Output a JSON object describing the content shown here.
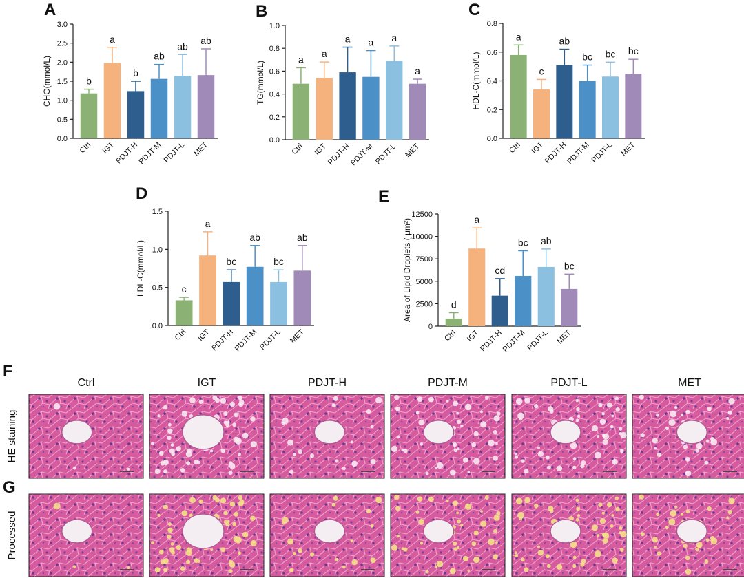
{
  "chart_data": [
    {
      "panel": "A",
      "type": "bar",
      "ylabel": "CHO(mmol/L)",
      "ylim": [
        0,
        3.0
      ],
      "yticks": [
        "0.0",
        "0.5",
        "1.0",
        "1.5",
        "2.0",
        "2.5",
        "3.0"
      ],
      "categories": [
        "Ctrl",
        "IGT",
        "PDJT-H",
        "PDJT-M",
        "PDJT-L",
        "MET"
      ],
      "values": [
        1.18,
        1.98,
        1.24,
        1.56,
        1.64,
        1.66
      ],
      "errors": [
        0.11,
        0.41,
        0.26,
        0.38,
        0.56,
        0.69
      ],
      "labels": [
        "b",
        "a",
        "b",
        "ab",
        "ab",
        "ab"
      ]
    },
    {
      "panel": "B",
      "type": "bar",
      "ylabel": "TG(mmol/L)",
      "ylim": [
        0,
        1.0
      ],
      "yticks": [
        "0.0",
        "0.2",
        "0.4",
        "0.6",
        "0.8",
        "1.0"
      ],
      "categories": [
        "Ctrl",
        "IGT",
        "PDJT-H",
        "PDJT-M",
        "PDJT-L",
        "MET"
      ],
      "values": [
        0.49,
        0.54,
        0.59,
        0.55,
        0.69,
        0.49
      ],
      "errors": [
        0.14,
        0.14,
        0.22,
        0.23,
        0.13,
        0.04
      ],
      "labels": [
        "a",
        "a",
        "a",
        "a",
        "a",
        "a"
      ]
    },
    {
      "panel": "C",
      "type": "bar",
      "ylabel": "HDL-C(mmol/L)",
      "ylim": [
        0,
        0.8
      ],
      "yticks": [
        "0.0",
        "0.2",
        "0.4",
        "0.6",
        "0.8"
      ],
      "categories": [
        "Ctrl",
        "IGT",
        "PDJT-H",
        "PDJT-M",
        "PDJT-L",
        "MET"
      ],
      "values": [
        0.58,
        0.34,
        0.51,
        0.4,
        0.43,
        0.45
      ],
      "errors": [
        0.07,
        0.07,
        0.11,
        0.11,
        0.1,
        0.1
      ],
      "labels": [
        "a",
        "c",
        "ab",
        "bc",
        "bc",
        "bc"
      ]
    },
    {
      "panel": "D",
      "type": "bar",
      "ylabel": "LDL-C(mmol/L)",
      "ylim": [
        0,
        1.5
      ],
      "yticks": [
        "0.0",
        "0.5",
        "1.0",
        "1.5"
      ],
      "categories": [
        "Ctrl",
        "IGT",
        "PDJT-H",
        "PDJT-M",
        "PDJT-L",
        "MET"
      ],
      "values": [
        0.33,
        0.92,
        0.57,
        0.77,
        0.57,
        0.72
      ],
      "errors": [
        0.04,
        0.31,
        0.16,
        0.28,
        0.16,
        0.33
      ],
      "labels": [
        "c",
        "a",
        "bc",
        "ab",
        "bc",
        "ab"
      ]
    },
    {
      "panel": "E",
      "type": "bar",
      "ylabel": "Area of Lipid Droplets ( μm²)",
      "ylim": [
        0,
        12500
      ],
      "yticks": [
        "0",
        "2500",
        "5000",
        "7500",
        "10000",
        "12500"
      ],
      "categories": [
        "Ctrl",
        "IGT",
        "PDJT-H",
        "PDJT-M",
        "PDJT-L",
        "MET"
      ],
      "values": [
        850,
        8650,
        3400,
        5600,
        6600,
        4150
      ],
      "errors": [
        650,
        2300,
        1900,
        2800,
        2000,
        1650
      ],
      "labels": [
        "d",
        "a",
        "cd",
        "bc",
        "ab",
        "bc"
      ]
    }
  ],
  "colors": [
    "#8bb174",
    "#f6b27d",
    "#2e5e8e",
    "#4c90c8",
    "#8cc0e1",
    "#a08ab8"
  ],
  "histology": {
    "panel_f": "F",
    "panel_g": "G",
    "row_labels": [
      "HE staining",
      "Processed"
    ],
    "columns": [
      "Ctrl",
      "IGT",
      "PDJT-H",
      "PDJT-M",
      "PDJT-L",
      "MET"
    ],
    "vacuole_level": [
      0.05,
      0.9,
      0.25,
      0.6,
      0.7,
      0.45
    ]
  }
}
